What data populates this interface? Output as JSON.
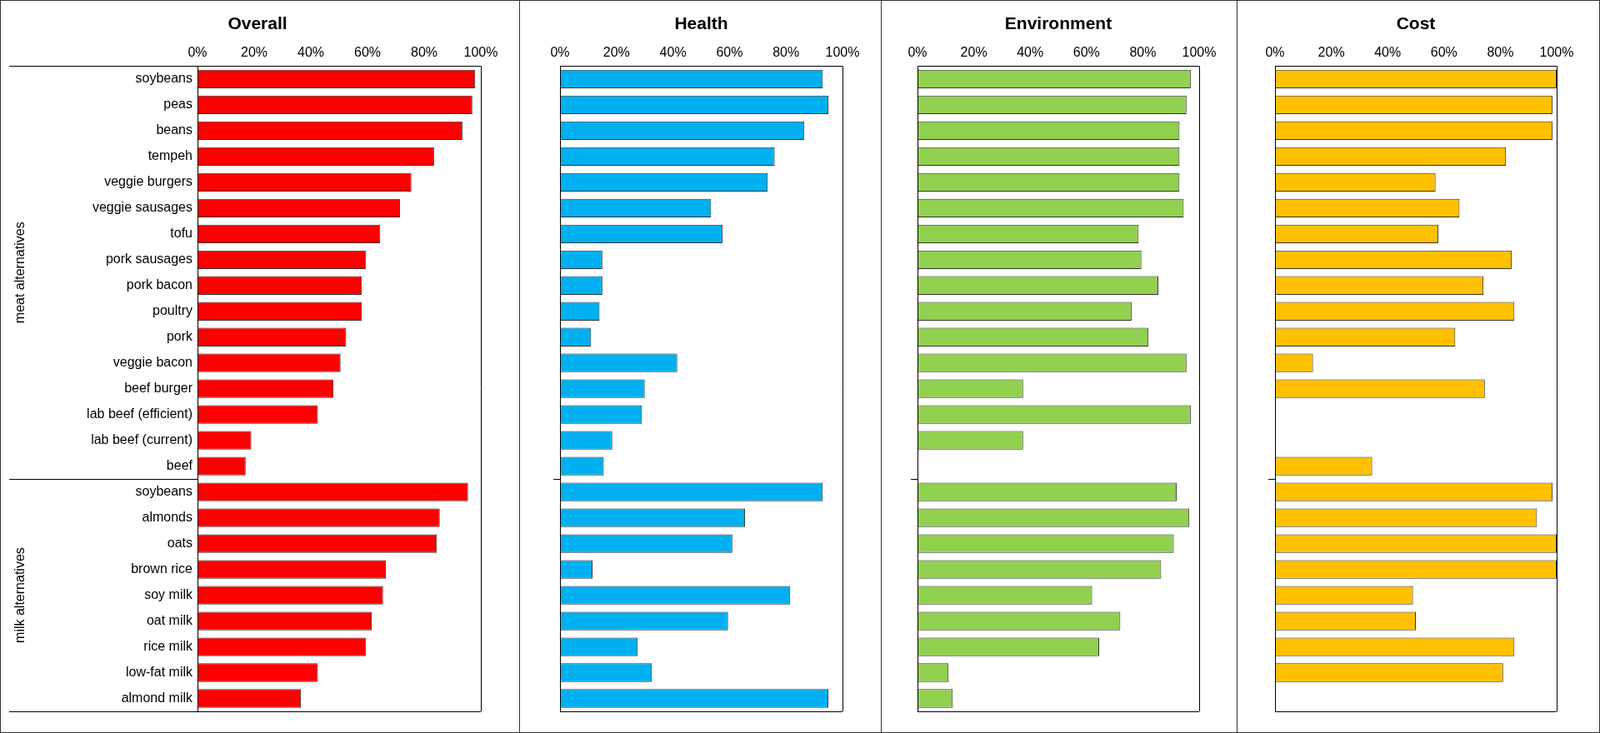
{
  "chart_data": [
    {
      "type": "bar",
      "orientation": "horizontal",
      "title": "Overall",
      "color": "#ff0000",
      "groups": [
        {
          "name": "meat alternatives",
          "categories": [
            "soybeans",
            "peas",
            "beans",
            "tempeh",
            "veggie burgers",
            "veggie sausages",
            "tofu",
            "pork sausages",
            "pork bacon",
            "poultry",
            "pork",
            "veggie bacon",
            "beef burger",
            "lab beef (efficient)",
            "lab beef (current)",
            "beef"
          ]
        },
        {
          "name": "milk alternatives",
          "categories": [
            "soybeans",
            "almonds",
            "oats",
            "brown rice",
            "soy milk",
            "oat milk",
            "rice milk",
            "low-fat milk",
            "almond milk"
          ]
        }
      ],
      "values": [
        98,
        97,
        93.5,
        83.5,
        75.5,
        71.5,
        64.5,
        59.5,
        58,
        58,
        52.5,
        50.5,
        48,
        42.5,
        19,
        17,
        95.5,
        85.5,
        84.5,
        66.5,
        65.5,
        61.5,
        59.5,
        42.5,
        36.5
      ],
      "xlim": [
        0,
        100
      ],
      "xticks": [
        {
          "value": 0,
          "label": "0%"
        },
        {
          "value": 20,
          "label": "20%"
        },
        {
          "value": 40,
          "label": "40%"
        },
        {
          "value": 60,
          "label": "60%"
        },
        {
          "value": 80,
          "label": "80%"
        },
        {
          "value": 100,
          "label": "100%"
        }
      ],
      "grid": false,
      "tick_labels": true
    },
    {
      "type": "bar",
      "orientation": "horizontal",
      "title": "Health",
      "color": "#00b0f0",
      "groups": [
        {
          "name": "meat alternatives",
          "categories": [
            "soybeans",
            "peas",
            "beans",
            "tempeh",
            "veggie burgers",
            "veggie sausages",
            "tofu",
            "pork sausages",
            "pork bacon",
            "poultry",
            "pork",
            "veggie bacon",
            "beef burger",
            "lab beef (efficient)",
            "lab beef (current)",
            "beef"
          ]
        },
        {
          "name": "milk alternatives",
          "categories": [
            "soybeans",
            "almonds",
            "oats",
            "brown rice",
            "soy milk",
            "oat milk",
            "rice milk",
            "low-fat milk",
            "almond milk"
          ]
        }
      ],
      "values": [
        93,
        95,
        86.5,
        76,
        73.5,
        53.5,
        57.5,
        15,
        15,
        14,
        11,
        41.5,
        30,
        29,
        18.5,
        15.5,
        93,
        65.5,
        61,
        11.5,
        81.5,
        59.5,
        27.5,
        32.5,
        95
      ],
      "xlim": [
        0,
        100
      ],
      "xticks": [
        {
          "value": 0,
          "label": "0%"
        },
        {
          "value": 20,
          "label": "20%"
        },
        {
          "value": 40,
          "label": "40%"
        },
        {
          "value": 60,
          "label": "60%"
        },
        {
          "value": 80,
          "label": "80%"
        },
        {
          "value": 100,
          "label": "100%"
        }
      ],
      "grid": false,
      "tick_labels": "x"
    },
    {
      "type": "bar",
      "orientation": "horizontal",
      "title": "Environment",
      "color": "#92d050",
      "groups": [
        {
          "name": "meat alternatives",
          "categories": [
            "soybeans",
            "peas",
            "beans",
            "tempeh",
            "veggie burgers",
            "veggie sausages",
            "tofu",
            "pork sausages",
            "pork bacon",
            "poultry",
            "pork",
            "veggie bacon",
            "beef burger",
            "lab beef (efficient)",
            "lab beef (current)",
            "beef"
          ]
        },
        {
          "name": "milk alternatives",
          "categories": [
            "soybeans",
            "almonds",
            "oats",
            "brown rice",
            "soy milk",
            "oat milk",
            "rice milk",
            "low-fat milk",
            "almond milk"
          ]
        }
      ],
      "values": [
        97,
        95.5,
        93,
        93,
        93,
        94.5,
        78.5,
        79.5,
        85.5,
        76,
        82,
        95.5,
        37.5,
        97,
        37.5,
        null,
        92,
        96.5,
        91,
        86.5,
        62,
        72,
        64.5,
        11,
        12.5
      ],
      "xlim": [
        0,
        100
      ],
      "xticks": [
        {
          "value": 0,
          "label": "0%"
        },
        {
          "value": 20,
          "label": "20%"
        },
        {
          "value": 40,
          "label": "40%"
        },
        {
          "value": 60,
          "label": "60%"
        },
        {
          "value": 80,
          "label": "80%"
        },
        {
          "value": 100,
          "label": "100%"
        }
      ],
      "grid": false,
      "tick_labels": "x"
    },
    {
      "type": "bar",
      "orientation": "horizontal",
      "title": "Cost",
      "color": "#ffc000",
      "groups": [
        {
          "name": "meat alternatives",
          "categories": [
            "soybeans",
            "peas",
            "beans",
            "tempeh",
            "veggie burgers",
            "veggie sausages",
            "tofu",
            "pork sausages",
            "pork bacon",
            "poultry",
            "pork",
            "veggie bacon",
            "beef burger",
            "lab beef (efficient)",
            "lab beef (current)",
            "beef"
          ]
        },
        {
          "name": "milk alternatives",
          "categories": [
            "soybeans",
            "almonds",
            "oats",
            "brown rice",
            "soy milk",
            "oat milk",
            "rice milk",
            "low-fat milk",
            "almond milk"
          ]
        }
      ],
      "values": [
        100,
        98.5,
        98.5,
        82,
        57,
        65.5,
        58,
        84,
        74,
        85,
        64,
        13.5,
        74.5,
        null,
        null,
        34.5,
        98.5,
        93,
        100,
        100,
        49,
        50,
        85,
        81,
        null
      ],
      "xlim": [
        0,
        100
      ],
      "xticks": [
        {
          "value": 0,
          "label": "0%"
        },
        {
          "value": 20,
          "label": "20%"
        },
        {
          "value": 40,
          "label": "40%"
        },
        {
          "value": 60,
          "label": "60%"
        },
        {
          "value": 80,
          "label": "80%"
        },
        {
          "value": 100,
          "label": "100%"
        }
      ],
      "grid": false,
      "tick_labels": "x"
    }
  ]
}
